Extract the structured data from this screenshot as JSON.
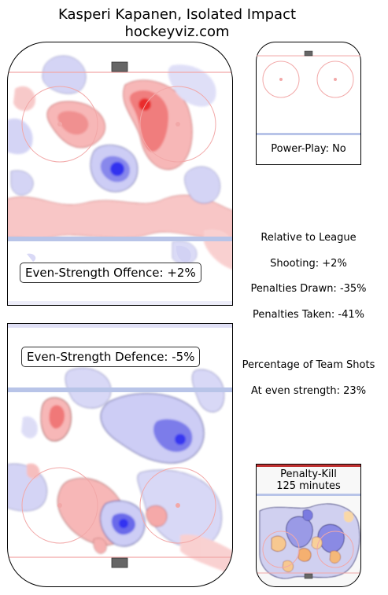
{
  "title": {
    "line1": "Kasperi Kapanen, Isolated Impact",
    "line2": "hockeyviz.com"
  },
  "offence": {
    "label": "Even-Strength Offence: +2%"
  },
  "defence": {
    "label": "Even-Strength Defence: -5%"
  },
  "powerplay": {
    "label": "Power-Play: No"
  },
  "penaltykill": {
    "line1": "Penalty-Kill",
    "line2": "125 minutes"
  },
  "stats": {
    "relative_header": "Relative to League",
    "shooting": "Shooting: +2%",
    "penalties_drawn": "Penalties Drawn: -35%",
    "penalties_taken": "Penalties Taken: -41%",
    "team_shots_header": "Percentage of Team Shots",
    "even_strength": "At even strength: 23%"
  },
  "colors": {
    "positive": "#e8403f",
    "negative": "#2b2bd8",
    "blue_line": "#b8c4e8",
    "circle": "#f2a8a8",
    "goal_line": "#f2a8a8",
    "net": "#666666"
  }
}
